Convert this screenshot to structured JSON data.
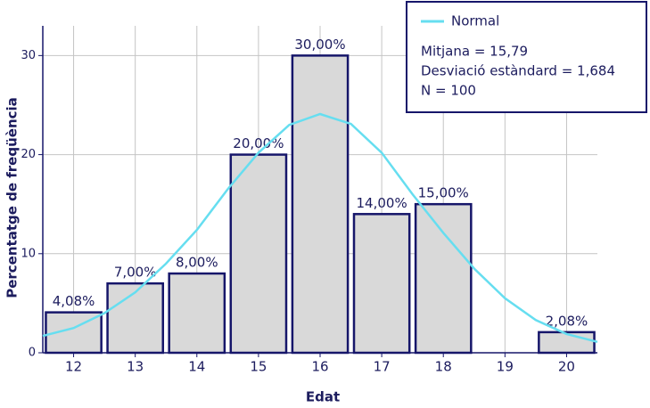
{
  "chart_data": {
    "type": "bar",
    "x_label": "Edat",
    "y_label": "Percentatge de freqüència",
    "x": [
      12,
      13,
      14,
      15,
      16,
      17,
      18,
      19,
      20
    ],
    "values": [
      4.08,
      7,
      8,
      20,
      30,
      14,
      15,
      null,
      2.08
    ],
    "value_labels": [
      "4,08%",
      "7,00%",
      "8,00%",
      "20,00%",
      "30,00%",
      "14,00%",
      "15,00%",
      null,
      "2,08%"
    ],
    "color": "#d9d9d9",
    "edge_color": "#16166a",
    "bar_width": 0.9,
    "curve": {
      "name": "Normal",
      "color": "#66def0",
      "x": [
        11.5,
        12,
        12.5,
        13,
        13.5,
        14,
        14.5,
        15,
        15.5,
        16,
        16.5,
        17,
        17.5,
        18,
        18.5,
        19,
        19.5,
        20,
        20.5
      ],
      "values": [
        1.7,
        2.5,
        4.0,
        6.1,
        9.0,
        12.4,
        16.5,
        20.2,
        23.0,
        24.1,
        23.1,
        20.2,
        16.0,
        12.1,
        8.5,
        5.5,
        3.3,
        1.9,
        1.1
      ]
    },
    "legend_lines": [
      "Mitjana = 15,79",
      "Desviació estàndard = 1,684",
      "N = 100"
    ],
    "legend": "upper right",
    "xlim": [
      11.5,
      20.5
    ],
    "xticks": [
      12,
      13,
      14,
      15,
      16,
      17,
      18,
      19,
      20
    ],
    "ylim": [
      0,
      33
    ],
    "yticks": [
      0,
      10,
      20,
      30
    ],
    "grid": true
  }
}
